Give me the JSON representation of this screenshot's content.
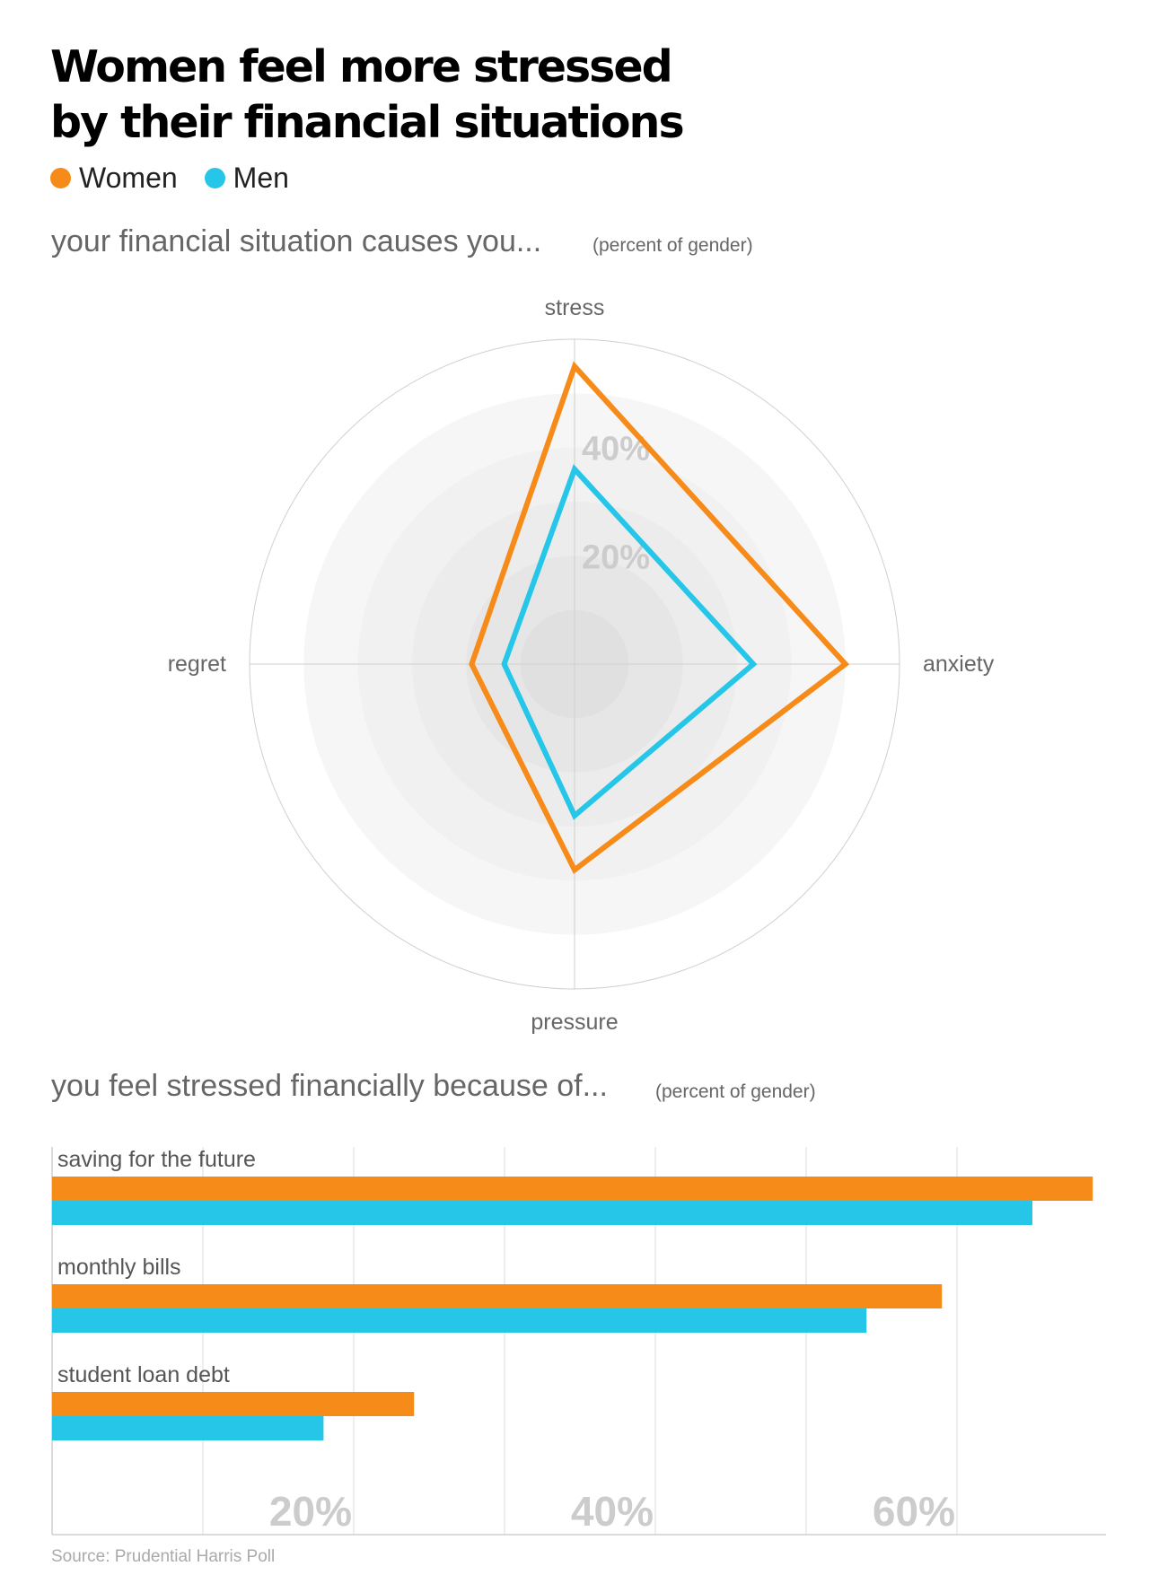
{
  "header": {
    "title_line1": "Women feel more stressed",
    "title_line2": "by their financial situations"
  },
  "legend": [
    {
      "label": "Women",
      "color": "#F78B1A"
    },
    {
      "label": "Men",
      "color": "#26C6E8"
    }
  ],
  "colors": {
    "women": "#F78B1A",
    "men": "#26C6E8",
    "grid": "#cfcfcf",
    "tick_text": "#cccccc"
  },
  "sections": {
    "radar_title": "your financial situation causes you...",
    "radar_note": "(percent of gender)",
    "bar_title": "you feel stressed financially because of...",
    "bar_note": "(percent of gender)"
  },
  "source": "Source: Prudential Harris Poll",
  "chart_data": [
    {
      "type": "radar",
      "axes": [
        "stress",
        "anxiety",
        "pressure",
        "regret"
      ],
      "rmax": 60,
      "rings": [
        10,
        20,
        30,
        40,
        50,
        60
      ],
      "tick_labels": [
        {
          "value": 20,
          "label": "20%"
        },
        {
          "value": 40,
          "label": "40%"
        }
      ],
      "series": [
        {
          "name": "Women",
          "values": [
            55,
            50,
            38,
            19
          ]
        },
        {
          "name": "Men",
          "values": [
            36,
            33,
            28,
            13
          ]
        }
      ]
    },
    {
      "type": "bar",
      "orientation": "horizontal",
      "categories": [
        "saving for the future",
        "monthly bills",
        "student loan debt"
      ],
      "xlim": [
        0,
        70
      ],
      "grid": [
        10,
        20,
        30,
        40,
        50,
        60
      ],
      "tick_labels": [
        {
          "value": 20,
          "label": "20%"
        },
        {
          "value": 40,
          "label": "40%"
        },
        {
          "value": 60,
          "label": "60%"
        }
      ],
      "series": [
        {
          "name": "Women",
          "values": [
            69,
            59,
            24
          ]
        },
        {
          "name": "Men",
          "values": [
            65,
            54,
            18
          ]
        }
      ]
    }
  ]
}
